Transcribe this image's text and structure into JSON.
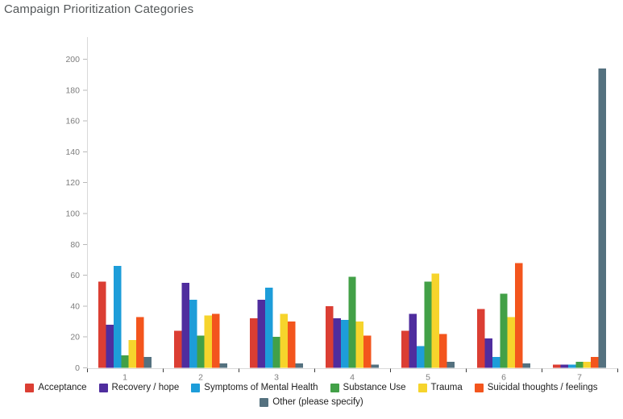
{
  "title": "Campaign Prioritization Categories",
  "chart_data": {
    "type": "bar",
    "title": "Campaign Prioritization Categories",
    "xlabel": "",
    "ylabel": "",
    "categories": [
      "1",
      "2",
      "3",
      "4",
      "5",
      "6",
      "7"
    ],
    "series": [
      {
        "name": "Acceptance",
        "color": "#db3e33",
        "values": [
          56,
          24,
          32,
          40,
          24,
          38,
          2
        ]
      },
      {
        "name": "Recovery / hope",
        "color": "#4f2d9e",
        "values": [
          28,
          55,
          44,
          32,
          35,
          19,
          2
        ]
      },
      {
        "name": "Symptoms of Mental Health",
        "color": "#1d9dd9",
        "values": [
          66,
          44,
          52,
          31,
          14,
          7,
          2
        ]
      },
      {
        "name": "Substance Use",
        "color": "#42a047",
        "values": [
          8,
          21,
          20,
          59,
          56,
          48,
          4
        ]
      },
      {
        "name": "Trauma",
        "color": "#f6d42c",
        "values": [
          18,
          34,
          35,
          30,
          61,
          33,
          4
        ]
      },
      {
        "name": "Suicidal thoughts / feelings",
        "color": "#f3551d",
        "values": [
          33,
          35,
          30,
          21,
          22,
          68,
          7
        ]
      },
      {
        "name": "Other (please specify)",
        "color": "#54717f",
        "values": [
          7,
          3,
          3,
          2,
          4,
          3,
          194
        ]
      }
    ],
    "ylim": [
      0,
      200
    ],
    "ytick_step": 20,
    "ytick_labels": [
      "0",
      "20",
      "40",
      "60",
      "80",
      "100",
      "120",
      "140",
      "160",
      "180",
      "200"
    ],
    "grid": false,
    "legend_position": "bottom"
  },
  "style_colors": {
    "title_text": "#54585a",
    "axis_line": "#d9d9d9",
    "y_tick_mark": "#b9b9b9",
    "x_tick_mark": "#3c3c3c",
    "tick_label_text": "#7d7d7d",
    "legend_text": "#1f1f1f"
  }
}
